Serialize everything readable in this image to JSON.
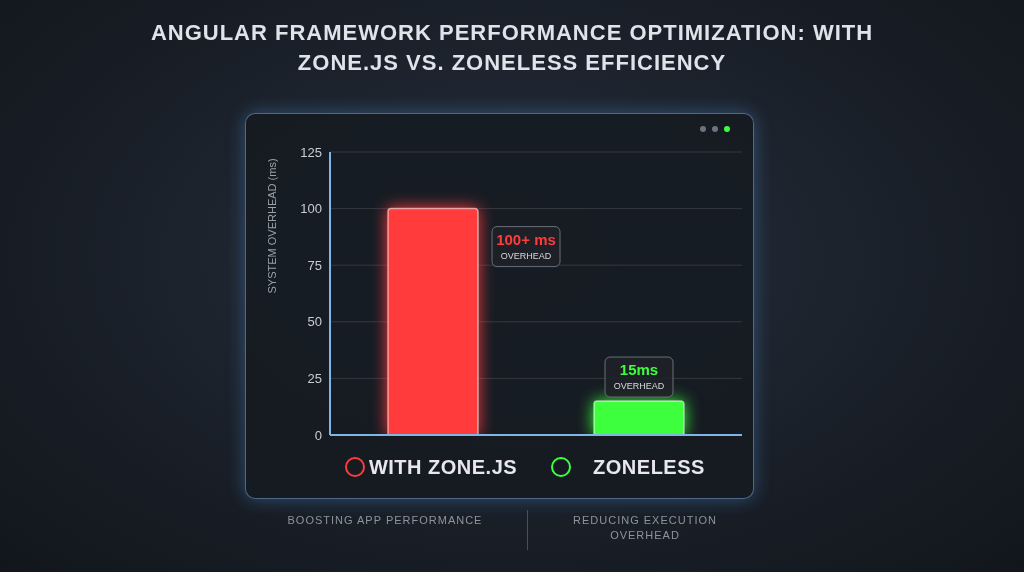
{
  "chart_data": {
    "type": "bar",
    "title": "ANGULAR FRAMEWORK PERFORMANCE OPTIMIZATION: WITH ZONE.JS VS. ZONELESS EFFICIENCY",
    "y_label": "SYSTEM OVERHEAD (ms)",
    "categories": [
      "WITH ZONE.JS",
      "ZONELESS"
    ],
    "values": [
      100,
      15
    ],
    "value_labels": [
      "100+ ms OVERHEAD",
      "15ms OVERHEAD"
    ],
    "data_labels": true,
    "colors": [
      "#ff3b3b",
      "#3dff3d"
    ],
    "ylim": [
      0,
      125
    ],
    "yticks": [
      0,
      25,
      50,
      75,
      100,
      125
    ],
    "grid": true,
    "footer": [
      "BOOSTING APP PERFORMANCE",
      "REDUCING EXECUTION OVERHEAD"
    ]
  }
}
